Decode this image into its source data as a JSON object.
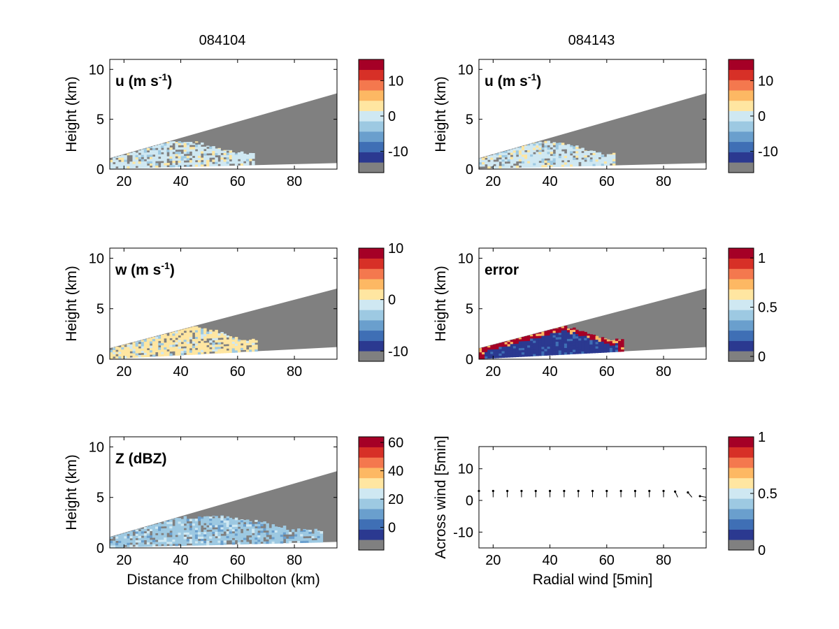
{
  "column_titles": [
    "084104",
    "084143"
  ],
  "colors": {
    "missing": "#808080",
    "palette": [
      "#2B3990",
      "#3F6FB5",
      "#6A9FCD",
      "#9DC9E2",
      "#CFE8F2",
      "#FFE6A1",
      "#FDB863",
      "#F4784E",
      "#D73027",
      "#A50026"
    ]
  },
  "chart_data": [
    {
      "id": "u-left",
      "type": "heatmap",
      "label": "u (m s-1)",
      "label_main": "u (m s",
      "label_sup": "-1",
      "label_end": ")",
      "xlabel": "",
      "ylabel": "Height (km)",
      "xlim": [
        15,
        95
      ],
      "ylim": [
        0,
        11
      ],
      "xticks": [
        "20",
        "40",
        "60",
        "80"
      ],
      "yticks": [
        "0",
        "5",
        "10"
      ],
      "colorbar": {
        "range": [
          -16,
          16
        ],
        "levels": 11,
        "ticks": [
          "-10",
          "0",
          "10"
        ]
      },
      "beam": {
        "top": [
          [
            15,
            1.1
          ],
          [
            95,
            7.6
          ]
        ],
        "bottom": [
          [
            15,
            0.05
          ],
          [
            95,
            0.6
          ]
        ]
      },
      "echo": {
        "extent": [
          15,
          66
        ],
        "max_height": 2.7,
        "dominant_level": 4,
        "mix": [
          4,
          3,
          5
        ]
      }
    },
    {
      "id": "u-right",
      "type": "heatmap",
      "label": "u (m s-1)",
      "label_main": "u (m s",
      "label_sup": "-1",
      "label_end": ")",
      "xlabel": "",
      "ylabel": "Height (km)",
      "xlim": [
        15,
        95
      ],
      "ylim": [
        0,
        11
      ],
      "xticks": [
        "20",
        "40",
        "60",
        "80"
      ],
      "yticks": [
        "0",
        "5",
        "10"
      ],
      "colorbar": {
        "range": [
          -16,
          16
        ],
        "levels": 11,
        "ticks": [
          "-10",
          "0",
          "10"
        ]
      },
      "beam": {
        "top": [
          [
            15,
            1.1
          ],
          [
            95,
            7.6
          ]
        ],
        "bottom": [
          [
            15,
            0.05
          ],
          [
            95,
            0.6
          ]
        ]
      },
      "echo": {
        "extent": [
          15,
          63
        ],
        "max_height": 2.6,
        "dominant_level": 4,
        "mix": [
          4,
          3,
          5
        ]
      }
    },
    {
      "id": "w-left",
      "type": "heatmap",
      "label": "w (m s-1)",
      "label_main": "w (m s",
      "label_sup": "-1",
      "label_end": ")",
      "xlabel": "",
      "ylabel": "Height (km)",
      "xlim": [
        15,
        95
      ],
      "ylim": [
        0,
        11
      ],
      "xticks": [
        "20",
        "40",
        "60",
        "80"
      ],
      "yticks": [
        "0",
        "5",
        "10"
      ],
      "colorbar": {
        "range": [
          -12,
          10
        ],
        "levels": 11,
        "ticks": [
          "-10",
          "0",
          "10"
        ]
      },
      "beam": {
        "top": [
          [
            15,
            1.1
          ],
          [
            95,
            7.0
          ]
        ],
        "bottom": [
          [
            15,
            0.05
          ],
          [
            95,
            1.2
          ]
        ]
      },
      "echo": {
        "extent": [
          15,
          67
        ],
        "max_height": 3.3,
        "dominant_level": 5,
        "mix": [
          5,
          4,
          3
        ]
      }
    },
    {
      "id": "error-right",
      "type": "heatmap",
      "label": "error",
      "label_main": "error",
      "label_sup": "",
      "label_end": "",
      "xlabel": "",
      "ylabel": "Height (km)",
      "xlim": [
        15,
        95
      ],
      "ylim": [
        0,
        11
      ],
      "xticks": [
        "20",
        "40",
        "60",
        "80"
      ],
      "yticks": [
        "0",
        "5",
        "10"
      ],
      "colorbar": {
        "range": [
          -0.05,
          1.1
        ],
        "levels": 11,
        "ticks": [
          "0",
          "0.5",
          "1"
        ]
      },
      "beam": {
        "top": [
          [
            15,
            1.1
          ],
          [
            95,
            7.0
          ]
        ],
        "bottom": [
          [
            15,
            0.05
          ],
          [
            95,
            1.2
          ]
        ]
      },
      "echo": {
        "extent": [
          15,
          66
        ],
        "max_height": 3.3,
        "dominant_level": 0,
        "mix": [
          0,
          9,
          4
        ]
      }
    },
    {
      "id": "z-left",
      "type": "heatmap",
      "label": "Z (dBZ)",
      "label_main": "Z (dBZ)",
      "label_sup": "",
      "label_end": "",
      "xlabel": "Distance from Chilbolton (km)",
      "ylabel": "Height (km)",
      "xlim": [
        15,
        95
      ],
      "ylim": [
        0,
        11
      ],
      "xticks": [
        "20",
        "40",
        "60",
        "80"
      ],
      "yticks": [
        "0",
        "5",
        "10"
      ],
      "colorbar": {
        "range": [
          -16,
          64
        ],
        "levels": 11,
        "ticks": [
          "0",
          "20",
          "40",
          "60"
        ]
      },
      "beam": {
        "top": [
          [
            15,
            1.1
          ],
          [
            95,
            7.6
          ]
        ],
        "bottom": [
          [
            15,
            0.05
          ],
          [
            95,
            0.6
          ]
        ]
      },
      "echo": {
        "extent": [
          15,
          90
        ],
        "max_height": 3.0,
        "dominant_level": 3,
        "mix": [
          3,
          2,
          4
        ]
      }
    },
    {
      "id": "wind-right",
      "type": "scatter",
      "label": "",
      "label_main": "",
      "label_sup": "",
      "label_end": "",
      "xlabel": "Radial wind [5min]",
      "ylabel": "Across wind [5min]",
      "xlim": [
        15,
        95
      ],
      "ylim": [
        -15,
        17
      ],
      "xticks": [
        "20",
        "40",
        "60",
        "80"
      ],
      "yticks": [
        "-10",
        "0",
        "10"
      ],
      "colorbar": {
        "range": [
          0,
          1
        ],
        "levels": 11,
        "ticks": [
          "0",
          "0.5",
          "1"
        ]
      },
      "arrows": {
        "x": [
          15,
          20,
          25,
          30,
          35,
          40,
          45,
          50,
          55,
          60,
          65,
          70,
          75,
          80,
          85,
          90,
          95
        ],
        "y": 1,
        "angle_deg": [
          0,
          0,
          0,
          0,
          0,
          0,
          0,
          0,
          0,
          0,
          0,
          0,
          0,
          0,
          -25,
          -40,
          -80
        ]
      }
    }
  ]
}
